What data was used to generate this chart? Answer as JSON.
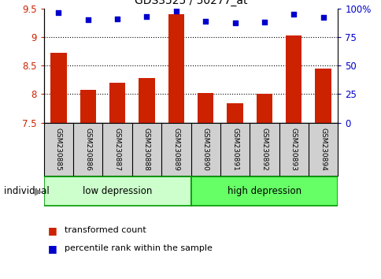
{
  "title": "GDS3525 / 50277_at",
  "samples": [
    "GSM230885",
    "GSM230886",
    "GSM230887",
    "GSM230888",
    "GSM230889",
    "GSM230890",
    "GSM230891",
    "GSM230892",
    "GSM230893",
    "GSM230894"
  ],
  "bar_values": [
    8.72,
    8.08,
    8.2,
    8.28,
    9.4,
    8.02,
    7.84,
    8.0,
    9.02,
    8.45
  ],
  "dot_values": [
    96,
    90,
    91,
    93,
    98,
    89,
    87,
    88,
    95,
    92
  ],
  "ymin": 7.5,
  "ymax": 9.5,
  "y2min": 0,
  "y2max": 100,
  "bar_color": "#cc2200",
  "dot_color": "#0000cc",
  "group1_label": "low depression",
  "group2_label": "high depression",
  "group1_indices": [
    0,
    1,
    2,
    3,
    4
  ],
  "group2_indices": [
    5,
    6,
    7,
    8,
    9
  ],
  "group1_color": "#ccffcc",
  "group2_color": "#66ff66",
  "group_border_color": "#009900",
  "individual_label": "individual",
  "legend_bar_label": "transformed count",
  "legend_dot_label": "percentile rank within the sample",
  "left_axis_color": "#cc2200",
  "right_axis_color": "#0000cc",
  "ytick_labels_left": [
    "7.5",
    "8",
    "8.5",
    "9",
    "9.5"
  ],
  "ytick_values_left": [
    7.5,
    8.0,
    8.5,
    9.0,
    9.5
  ],
  "ytick_labels_right": [
    "0",
    "25",
    "50",
    "75",
    "100%"
  ],
  "ytick_values_right": [
    0,
    25,
    50,
    75,
    100
  ],
  "grid_lines": [
    8.0,
    8.5,
    9.0
  ],
  "background_color": "#ffffff",
  "plot_bg_color": "#ffffff",
  "tick_bg_color": "#d0d0d0"
}
